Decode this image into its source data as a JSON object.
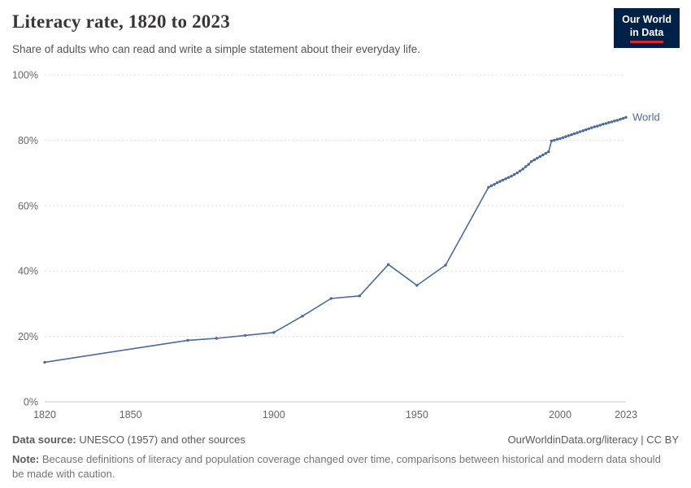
{
  "header": {
    "title": "Literacy rate, 1820 to 2023",
    "subtitle": "Share of adults who can read and write a simple statement about their everyday life.",
    "logo_line1": "Our World",
    "logo_line2": "in Data",
    "logo_bg_color": "#002147",
    "logo_accent_color": "#e0232e"
  },
  "chart_data": {
    "type": "line",
    "title": "Literacy rate, 1820 to 2023",
    "xlabel": "",
    "ylabel": "",
    "xlim": [
      1820,
      2023
    ],
    "ylim": [
      0,
      100
    ],
    "grid": "horizontal-dotted",
    "legend_position": "end-of-line",
    "x_ticks": [
      {
        "v": 1820,
        "label": "1820"
      },
      {
        "v": 1850,
        "label": "1850"
      },
      {
        "v": 1900,
        "label": "1900"
      },
      {
        "v": 1950,
        "label": "1950"
      },
      {
        "v": 2000,
        "label": "2000"
      },
      {
        "v": 2023,
        "label": "2023"
      }
    ],
    "y_ticks": [
      {
        "v": 0,
        "label": "0%"
      },
      {
        "v": 20,
        "label": "20%"
      },
      {
        "v": 40,
        "label": "40%"
      },
      {
        "v": 60,
        "label": "60%"
      },
      {
        "v": 80,
        "label": "80%"
      },
      {
        "v": 100,
        "label": "100%"
      }
    ],
    "series": [
      {
        "name": "World",
        "color": "#4c6a9c",
        "points": [
          [
            1820,
            12.1
          ],
          [
            1870,
            18.8
          ],
          [
            1880,
            19.4
          ],
          [
            1890,
            20.3
          ],
          [
            1900,
            21.2
          ],
          [
            1910,
            26.2
          ],
          [
            1920,
            31.6
          ],
          [
            1930,
            32.4
          ],
          [
            1940,
            42.0
          ],
          [
            1950,
            35.6
          ],
          [
            1960,
            41.8
          ],
          [
            1975,
            65.6
          ],
          [
            1976,
            66.1
          ],
          [
            1977,
            66.5
          ],
          [
            1978,
            67.0
          ],
          [
            1979,
            67.4
          ],
          [
            1980,
            67.8
          ],
          [
            1981,
            68.2
          ],
          [
            1982,
            68.6
          ],
          [
            1983,
            69.0
          ],
          [
            1984,
            69.5
          ],
          [
            1985,
            70.0
          ],
          [
            1986,
            70.6
          ],
          [
            1987,
            71.2
          ],
          [
            1988,
            71.9
          ],
          [
            1989,
            72.6
          ],
          [
            1990,
            73.5
          ],
          [
            1991,
            74.0
          ],
          [
            1992,
            74.5
          ],
          [
            1993,
            75.0
          ],
          [
            1994,
            75.5
          ],
          [
            1995,
            76.0
          ],
          [
            1996,
            76.5
          ],
          [
            1997,
            79.8
          ],
          [
            1998,
            80.0
          ],
          [
            1999,
            80.3
          ],
          [
            2000,
            80.5
          ],
          [
            2001,
            80.8
          ],
          [
            2002,
            81.1
          ],
          [
            2003,
            81.4
          ],
          [
            2004,
            81.7
          ],
          [
            2005,
            82.0
          ],
          [
            2006,
            82.3
          ],
          [
            2007,
            82.6
          ],
          [
            2008,
            82.9
          ],
          [
            2009,
            83.2
          ],
          [
            2010,
            83.5
          ],
          [
            2011,
            83.8
          ],
          [
            2012,
            84.1
          ],
          [
            2013,
            84.3
          ],
          [
            2014,
            84.6
          ],
          [
            2015,
            84.9
          ],
          [
            2016,
            85.1
          ],
          [
            2017,
            85.4
          ],
          [
            2018,
            85.6
          ],
          [
            2019,
            85.9
          ],
          [
            2020,
            86.1
          ],
          [
            2021,
            86.4
          ],
          [
            2022,
            86.7
          ],
          [
            2023,
            87.0
          ]
        ]
      }
    ]
  },
  "footer": {
    "source_label": "Data source:",
    "source_text": " UNESCO (1957) and other sources",
    "link_text": "OurWorldinData.org/literacy | CC BY",
    "note_label": "Note:",
    "note_text": " Because definitions of literacy and population coverage changed over time, comparisons between historical and modern data should be made with caution."
  }
}
